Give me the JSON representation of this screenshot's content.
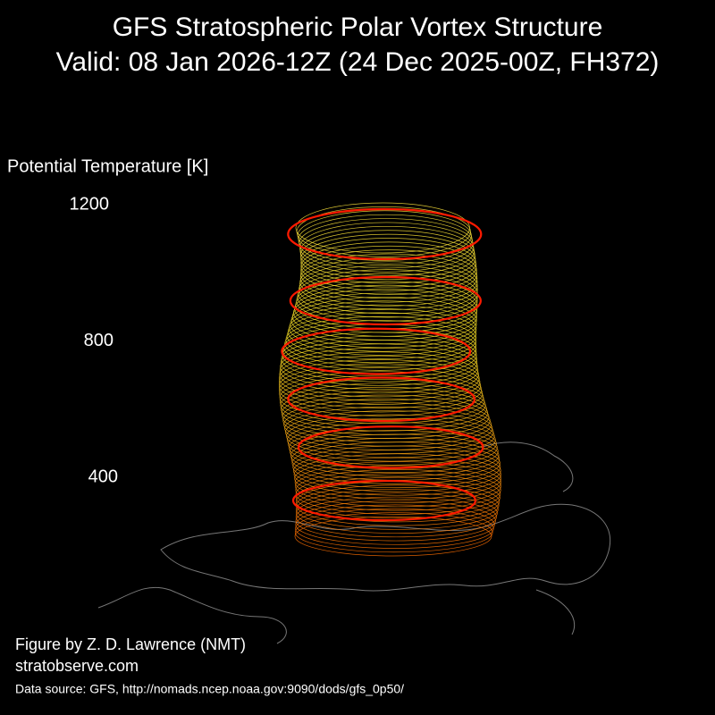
{
  "chart_data": {
    "type": "vortex3d",
    "title": "GFS Stratospheric Polar Vortex Structure",
    "subtitle": "Valid: 08 Jan 2026-12Z  (24 Dec 2025-00Z, FH372)",
    "z_label": "Potential Temperature [K]",
    "zlim": [
      400,
      1200
    ],
    "zticks": [
      400,
      800,
      1200
    ],
    "grid": true,
    "annotations": [
      "Figure by Z. D. Lawrence (NMT)",
      "stratobserve.com",
      "Data source: GFS, http://nomads.ncep.noaa.gov:9090/dods/gfs_0p50/"
    ]
  }
}
